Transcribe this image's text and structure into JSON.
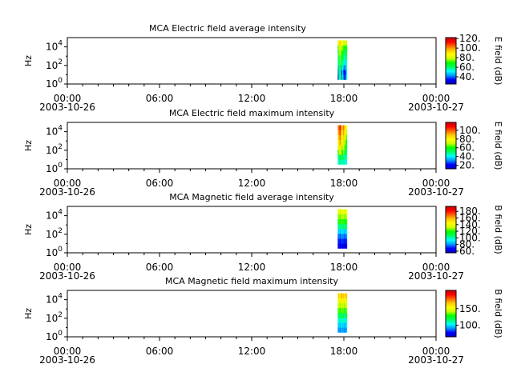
{
  "colormap_stops": [
    "#0000c8",
    "#0000ff",
    "#0096ff",
    "#00ffff",
    "#00ff64",
    "#00ff00",
    "#c8ff00",
    "#ffff00",
    "#ffc800",
    "#ff6400",
    "#ff0000",
    "#c80000"
  ],
  "chart_data": [
    {
      "type": "heatmap",
      "title": "MCA  Electric field average intensity",
      "ylabel": "Hz",
      "colorbar_label": "E field (dB)",
      "y_scale": "log",
      "ylim": [
        1,
        100000
      ],
      "y_ticks": [
        {
          "base": "10",
          "exp": "0"
        },
        {
          "base": "10",
          "exp": "2"
        },
        {
          "base": "10",
          "exp": "4"
        }
      ],
      "x_range": [
        "2003-10-26 00:00",
        "2003-10-27 00:00"
      ],
      "x_ticks": [
        {
          "time": "00:00",
          "date": "2003-10-26"
        },
        {
          "time": "06:00",
          "date": ""
        },
        {
          "time": "12:00",
          "date": ""
        },
        {
          "time": "18:00",
          "date": ""
        },
        {
          "time": "00:00",
          "date": "2003-10-27"
        }
      ],
      "data_span_hours": [
        17.6,
        18.2
      ],
      "data_freq_range_hz": [
        3,
        50000
      ],
      "clim": [
        25,
        122
      ],
      "colorbar_ticks": [
        "120.",
        "100.",
        "80.",
        "60.",
        "40."
      ],
      "colorbar_tick_values": [
        120,
        100,
        80,
        60,
        40
      ],
      "column_profile": [
        [
          35,
          55,
          70,
          55,
          40,
          55,
          40,
          30,
          40,
          55
        ],
        [
          40,
          60,
          65,
          50,
          35,
          50,
          35,
          28,
          35,
          50
        ],
        [
          45,
          60,
          70,
          60,
          45,
          55,
          45,
          40,
          45,
          55
        ],
        [
          50,
          65,
          75,
          65,
          55,
          60,
          55,
          50,
          50,
          55
        ],
        [
          55,
          70,
          80,
          70,
          60,
          65,
          60,
          55,
          55,
          60
        ],
        [
          60,
          75,
          85,
          75,
          65,
          70,
          65,
          60,
          60,
          65
        ],
        [
          70,
          80,
          90,
          80,
          75,
          75,
          70,
          70,
          70,
          70
        ],
        [
          80,
          90,
          95,
          90,
          85,
          85,
          80,
          80,
          80,
          80
        ]
      ]
    },
    {
      "type": "heatmap",
      "title": "MCA  Electric field maximum intensity",
      "ylabel": "Hz",
      "colorbar_label": "E field (dB)",
      "y_scale": "log",
      "ylim": [
        1,
        100000
      ],
      "y_ticks": [
        {
          "base": "10",
          "exp": "0"
        },
        {
          "base": "10",
          "exp": "2"
        },
        {
          "base": "10",
          "exp": "4"
        }
      ],
      "x_range": [
        "2003-10-26 00:00",
        "2003-10-27 00:00"
      ],
      "x_ticks": [
        {
          "time": "00:00",
          "date": "2003-10-26"
        },
        {
          "time": "06:00",
          "date": ""
        },
        {
          "time": "12:00",
          "date": ""
        },
        {
          "time": "18:00",
          "date": ""
        },
        {
          "time": "00:00",
          "date": "2003-10-27"
        }
      ],
      "data_span_hours": [
        17.6,
        18.2
      ],
      "data_freq_range_hz": [
        3,
        50000
      ],
      "clim": [
        12,
        118
      ],
      "colorbar_ticks": [
        "100.",
        "80.",
        "60.",
        "40.",
        "20."
      ],
      "colorbar_tick_values": [
        100,
        80,
        60,
        40,
        20
      ],
      "column_profile": [
        [
          40,
          45,
          50,
          48,
          42,
          45,
          50,
          40,
          45,
          42
        ],
        [
          45,
          50,
          60,
          55,
          45,
          50,
          55,
          45,
          50,
          45
        ],
        [
          60,
          70,
          78,
          70,
          55,
          60,
          70,
          55,
          55,
          50
        ],
        [
          70,
          80,
          88,
          80,
          65,
          70,
          80,
          65,
          60,
          55
        ],
        [
          78,
          85,
          95,
          85,
          70,
          75,
          85,
          70,
          65,
          60
        ],
        [
          85,
          90,
          100,
          90,
          75,
          80,
          90,
          75,
          70,
          65
        ],
        [
          90,
          95,
          105,
          95,
          80,
          85,
          95,
          80,
          75,
          70
        ],
        [
          95,
          100,
          110,
          100,
          85,
          90,
          100,
          85,
          80,
          75
        ]
      ]
    },
    {
      "type": "heatmap",
      "title": "MCA  Magnetic field average intensity",
      "ylabel": "Hz",
      "colorbar_label": "B field (dB)",
      "y_scale": "log",
      "ylim": [
        1,
        100000
      ],
      "y_ticks": [
        {
          "base": "10",
          "exp": "0"
        },
        {
          "base": "10",
          "exp": "2"
        },
        {
          "base": "10",
          "exp": "4"
        }
      ],
      "x_range": [
        "2003-10-26 00:00",
        "2003-10-27 00:00"
      ],
      "x_ticks": [
        {
          "time": "00:00",
          "date": "2003-10-26"
        },
        {
          "time": "06:00",
          "date": ""
        },
        {
          "time": "12:00",
          "date": ""
        },
        {
          "time": "18:00",
          "date": ""
        },
        {
          "time": "00:00",
          "date": "2003-10-27"
        }
      ],
      "data_span_hours": [
        17.6,
        18.2
      ],
      "data_freq_range_hz": [
        3,
        50000
      ],
      "clim": [
        55,
        195
      ],
      "colorbar_ticks": [
        "180.",
        "160.",
        "140.",
        "120.",
        "100.",
        "80.",
        "60."
      ],
      "colorbar_tick_values": [
        180,
        160,
        140,
        120,
        100,
        80,
        60
      ],
      "column_profile": [
        [
          62,
          65,
          60,
          64,
          68,
          62,
          65,
          60,
          63,
          66
        ],
        [
          68,
          72,
          66,
          70,
          74,
          70,
          72,
          68,
          70,
          72
        ],
        [
          75,
          80,
          74,
          78,
          82,
          78,
          80,
          75,
          78,
          80
        ],
        [
          85,
          92,
          84,
          88,
          95,
          88,
          90,
          85,
          88,
          92
        ],
        [
          100,
          108,
          98,
          104,
          112,
          104,
          108,
          100,
          104,
          108
        ],
        [
          115,
          122,
          112,
          118,
          126,
          118,
          122,
          115,
          118,
          122
        ],
        [
          125,
          132,
          122,
          128,
          136,
          128,
          132,
          125,
          128,
          132
        ],
        [
          135,
          142,
          132,
          138,
          146,
          138,
          142,
          135,
          138,
          142
        ]
      ]
    },
    {
      "type": "heatmap",
      "title": "MCA  Magnetic field maximum intensity",
      "ylabel": "Hz",
      "colorbar_label": "B field (dB)",
      "y_scale": "log",
      "ylim": [
        1,
        100000
      ],
      "y_ticks": [
        {
          "base": "10",
          "exp": "0"
        },
        {
          "base": "10",
          "exp": "2"
        },
        {
          "base": "10",
          "exp": "4"
        }
      ],
      "x_range": [
        "2003-10-26 00:00",
        "2003-10-27 00:00"
      ],
      "x_ticks": [
        {
          "time": "00:00",
          "date": "2003-10-26"
        },
        {
          "time": "06:00",
          "date": ""
        },
        {
          "time": "12:00",
          "date": ""
        },
        {
          "time": "18:00",
          "date": ""
        },
        {
          "time": "00:00",
          "date": "2003-10-27"
        }
      ],
      "data_span_hours": [
        17.6,
        18.2
      ],
      "data_freq_range_hz": [
        3,
        50000
      ],
      "clim": [
        65,
        205
      ],
      "colorbar_ticks": [
        "150.",
        "100."
      ],
      "colorbar_tick_values": [
        150,
        100
      ],
      "column_profile": [
        [
          90,
          94,
          88,
          92,
          96,
          90,
          94,
          88,
          92,
          95
        ],
        [
          96,
          100,
          94,
          98,
          102,
          96,
          100,
          94,
          98,
          100
        ],
        [
          105,
          110,
          102,
          108,
          112,
          105,
          110,
          102,
          108,
          110
        ],
        [
          115,
          122,
          112,
          118,
          125,
          115,
          122,
          112,
          118,
          122
        ],
        [
          130,
          136,
          126,
          132,
          140,
          130,
          136,
          126,
          132,
          136
        ],
        [
          140,
          148,
          136,
          144,
          150,
          140,
          148,
          136,
          144,
          148
        ],
        [
          150,
          158,
          146,
          154,
          162,
          150,
          158,
          146,
          154,
          158
        ],
        [
          160,
          168,
          156,
          164,
          172,
          160,
          168,
          156,
          164,
          168
        ]
      ]
    }
  ]
}
